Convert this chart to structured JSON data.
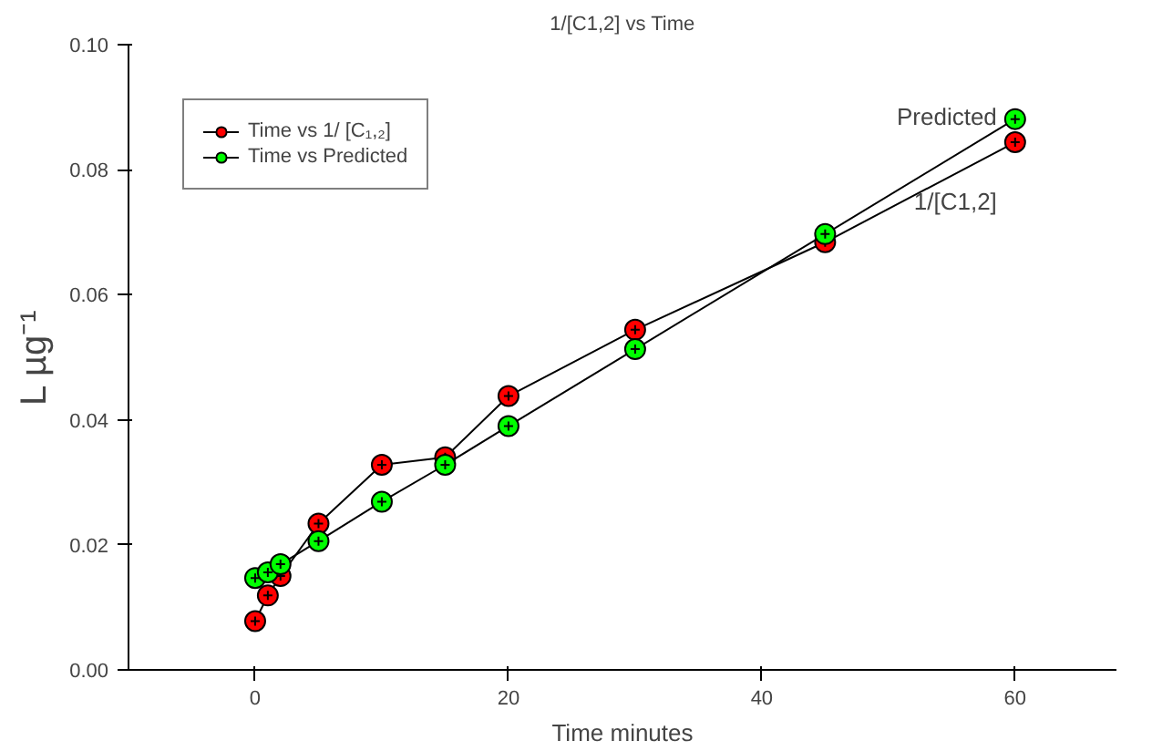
{
  "chart_data": {
    "type": "line",
    "title": "1/[C1,2] vs Time",
    "xlabel": "Time minutes",
    "ylabel": "L µg⁻¹",
    "x": [
      0,
      1,
      2,
      5,
      10,
      15,
      20,
      30,
      45,
      60
    ],
    "series": [
      {
        "name": "Time vs 1/ [C₁,₂]",
        "color": "#ff0000",
        "values": [
          0.0078,
          0.0119,
          0.015,
          0.0234,
          0.0328,
          0.034,
          0.0438,
          0.0544,
          0.0684,
          0.0844
        ]
      },
      {
        "name": "Time vs Predicted",
        "color": "#00ff00",
        "values": [
          0.0147,
          0.0156,
          0.0169,
          0.0206,
          0.0269,
          0.0328,
          0.039,
          0.0513,
          0.0697,
          0.0881
        ]
      }
    ],
    "xlim": [
      -10,
      68
    ],
    "ylim": [
      0,
      0.1
    ],
    "xticks": [
      0,
      20,
      40,
      60
    ],
    "yticks": [
      {
        "value": 0,
        "label": "0.00"
      },
      {
        "value": 0.02,
        "label": "0.02"
      },
      {
        "value": 0.04,
        "label": "0.04"
      },
      {
        "value": 0.06,
        "label": "0.06"
      },
      {
        "value": 0.08,
        "label": "0.08"
      },
      {
        "value": 0.1,
        "label": "0.10"
      }
    ],
    "annotations": [
      {
        "text": "Predicted",
        "x": 60,
        "y": 0.0881
      },
      {
        "text": "1/[C1,2]",
        "x": 60,
        "y": 0.0844
      }
    ],
    "marker": "circle",
    "line_style": "solid",
    "grid": false,
    "legend": "top left"
  }
}
